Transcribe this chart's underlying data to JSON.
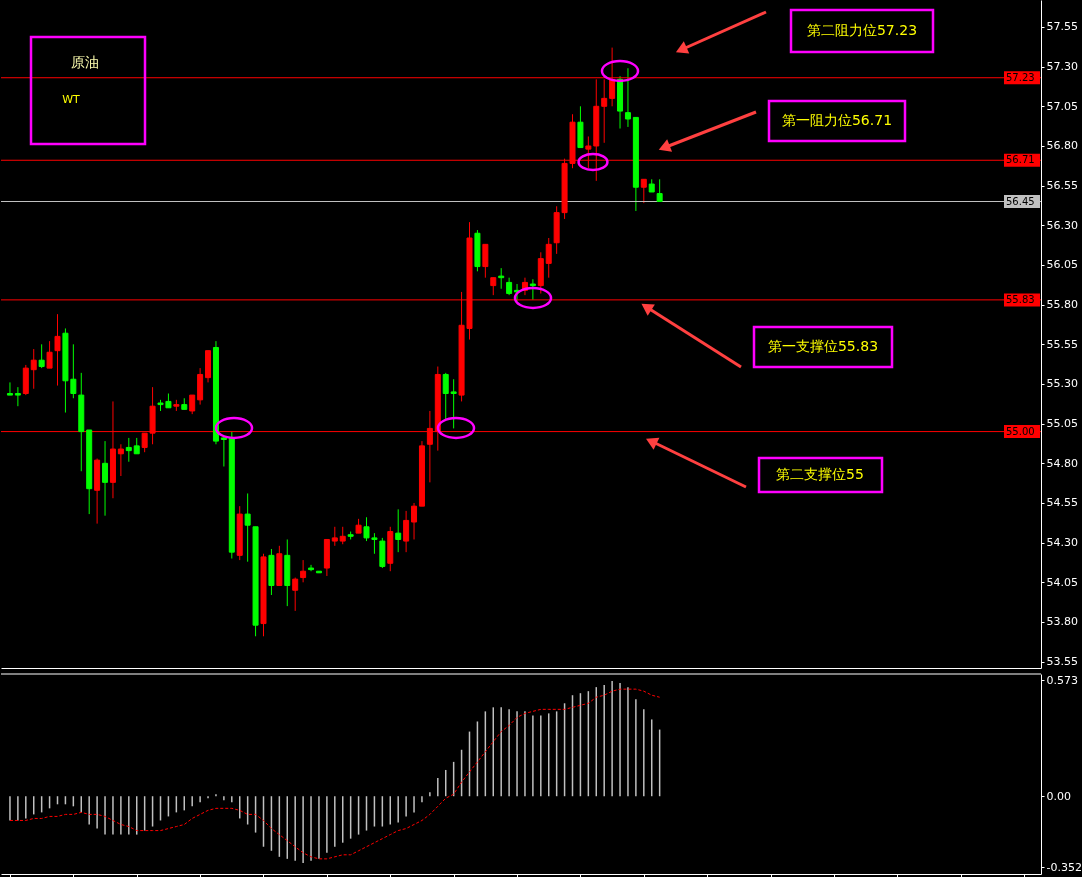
{
  "chart_data": [
    {
      "type": "candlestick",
      "categories": [
        null,
        null,
        null,
        null,
        null,
        null,
        null,
        null,
        null,
        null,
        null,
        null,
        null,
        null,
        null,
        null,
        null,
        null,
        null,
        null,
        null,
        null,
        null,
        null,
        null,
        null,
        null,
        null,
        null,
        null,
        null,
        null,
        null,
        null,
        null,
        null,
        null,
        null,
        null,
        null,
        null,
        null,
        null,
        null,
        null,
        null,
        null,
        null,
        null,
        null,
        null,
        null,
        null,
        null,
        null,
        null,
        null,
        null,
        null,
        null,
        null,
        null,
        null,
        null,
        null,
        null,
        null,
        null,
        null,
        null,
        null,
        null,
        null,
        null,
        null,
        null,
        null,
        null,
        null,
        null,
        null,
        null,
        null,
        null,
        null,
        null,
        null,
        null,
        null,
        null,
        null,
        null,
        null,
        null,
        null,
        null,
        null,
        null,
        null,
        null,
        null,
        null,
        null,
        null,
        null,
        null,
        null,
        null,
        null,
        null,
        null,
        null,
        null,
        null,
        null,
        null,
        null,
        null,
        null,
        null,
        null,
        null,
        null,
        null,
        null,
        null,
        null,
        null,
        null,
        null
      ],
      "ohlc": [
        [
          55.24,
          55.31,
          55.23,
          55.23
        ],
        [
          55.24,
          55.28,
          55.16,
          55.23
        ],
        [
          55.24,
          55.42,
          55.23,
          55.4
        ],
        [
          55.39,
          55.52,
          55.27,
          55.45
        ],
        [
          55.45,
          55.55,
          55.4,
          55.41
        ],
        [
          55.4,
          55.57,
          55.4,
          55.5
        ],
        [
          55.51,
          55.74,
          55.29,
          55.6
        ],
        [
          55.62,
          55.65,
          55.12,
          55.32
        ],
        [
          55.33,
          55.55,
          55.21,
          55.24
        ],
        [
          55.23,
          55.37,
          54.75,
          55.0
        ],
        [
          55.01,
          55.01,
          54.48,
          54.64
        ],
        [
          54.63,
          54.83,
          54.42,
          54.82
        ],
        [
          54.8,
          54.94,
          54.47,
          54.68
        ],
        [
          54.68,
          55.19,
          54.58,
          54.89
        ],
        [
          54.86,
          54.92,
          54.72,
          54.89
        ],
        [
          54.9,
          54.96,
          54.81,
          54.88
        ],
        [
          54.91,
          54.96,
          54.86,
          54.86
        ],
        [
          54.9,
          54.99,
          54.87,
          54.99
        ],
        [
          54.99,
          55.28,
          54.92,
          55.16
        ],
        [
          55.18,
          55.2,
          55.13,
          55.17
        ],
        [
          55.19,
          55.24,
          55.15,
          55.15
        ],
        [
          55.16,
          55.2,
          55.13,
          55.17
        ],
        [
          55.17,
          55.21,
          55.14,
          55.14
        ],
        [
          55.13,
          55.23,
          55.11,
          55.23
        ],
        [
          55.2,
          55.4,
          55.17,
          55.36
        ],
        [
          55.34,
          55.51,
          55.31,
          55.51
        ],
        [
          55.53,
          55.57,
          54.92,
          54.94
        ],
        [
          54.96,
          54.97,
          54.78,
          54.95
        ],
        [
          54.96,
          55.0,
          54.2,
          54.24
        ],
        [
          54.22,
          54.53,
          54.19,
          54.48
        ],
        [
          54.48,
          54.61,
          54.18,
          54.41
        ],
        [
          54.4,
          54.4,
          53.71,
          53.78
        ],
        [
          53.79,
          54.23,
          53.71,
          54.21
        ],
        [
          54.22,
          54.26,
          53.97,
          54.03
        ],
        [
          54.03,
          54.28,
          54.03,
          54.23
        ],
        [
          54.22,
          54.32,
          53.9,
          54.03
        ],
        [
          54.0,
          54.08,
          53.87,
          54.07
        ],
        [
          54.08,
          54.19,
          54.05,
          54.12
        ],
        [
          54.14,
          54.16,
          54.12,
          54.13
        ],
        [
          54.12,
          54.12,
          54.11,
          54.11
        ],
        [
          54.14,
          54.32,
          54.09,
          54.32
        ],
        [
          54.31,
          54.4,
          54.28,
          54.33
        ],
        [
          54.31,
          54.4,
          54.29,
          54.34
        ],
        [
          54.35,
          54.37,
          54.32,
          54.34
        ],
        [
          54.36,
          54.45,
          54.36,
          54.41
        ],
        [
          54.4,
          54.46,
          54.31,
          54.33
        ],
        [
          54.33,
          54.36,
          54.23,
          54.32
        ],
        [
          54.31,
          54.33,
          54.14,
          54.15
        ],
        [
          54.17,
          54.4,
          54.12,
          54.37
        ],
        [
          54.36,
          54.51,
          54.24,
          54.32
        ],
        [
          54.31,
          54.5,
          54.24,
          54.44
        ],
        [
          54.43,
          54.55,
          54.32,
          54.53
        ],
        [
          54.53,
          54.94,
          54.53,
          54.91
        ],
        [
          54.92,
          55.13,
          54.68,
          55.02
        ],
        [
          55.0,
          55.41,
          54.88,
          55.36
        ],
        [
          55.36,
          55.37,
          55.07,
          55.24
        ],
        [
          55.25,
          55.33,
          55.02,
          55.24
        ],
        [
          55.23,
          55.88,
          55.19,
          55.67
        ],
        [
          55.65,
          56.32,
          55.58,
          56.22
        ],
        [
          56.25,
          56.27,
          56.01,
          56.04
        ],
        [
          56.04,
          56.18,
          55.97,
          56.18
        ],
        [
          55.92,
          55.97,
          55.86,
          55.97
        ],
        [
          55.98,
          56.03,
          55.9,
          55.97
        ],
        [
          55.94,
          55.97,
          55.86,
          55.87
        ],
        [
          55.89,
          55.93,
          55.82,
          55.88
        ],
        [
          55.89,
          55.97,
          55.86,
          55.94
        ],
        [
          55.93,
          55.96,
          55.83,
          55.92
        ],
        [
          55.92,
          56.13,
          55.87,
          56.09
        ],
        [
          56.06,
          56.22,
          55.97,
          56.18
        ],
        [
          56.19,
          56.42,
          56.12,
          56.38
        ],
        [
          56.38,
          56.72,
          56.34,
          56.69
        ],
        [
          56.69,
          57.0,
          56.66,
          56.95
        ],
        [
          56.95,
          57.05,
          56.79,
          56.79
        ],
        [
          56.78,
          56.86,
          56.66,
          56.8
        ],
        [
          56.8,
          57.22,
          56.58,
          57.05
        ],
        [
          57.05,
          57.22,
          56.82,
          57.1
        ],
        [
          57.1,
          57.42,
          57.05,
          57.22
        ],
        [
          57.22,
          57.24,
          56.91,
          57.02
        ],
        [
          57.01,
          57.29,
          56.92,
          56.97
        ],
        [
          56.98,
          56.98,
          56.39,
          56.54
        ],
        [
          56.54,
          56.59,
          56.44,
          56.59
        ],
        [
          56.56,
          56.59,
          56.51,
          56.51
        ],
        [
          56.5,
          56.59,
          56.45,
          56.45
        ],
        null,
        null,
        null,
        null,
        null,
        null,
        null,
        null,
        null,
        null,
        null,
        null,
        null,
        null,
        null,
        null,
        null,
        null,
        null,
        null,
        null,
        null,
        null,
        null,
        null,
        null,
        null,
        null,
        null,
        null,
        null,
        null,
        null,
        null,
        null,
        null,
        null,
        null,
        null,
        null,
        null,
        null,
        null,
        null,
        null,
        null,
        null
      ],
      "colors": [
        "#00ff00",
        "#00ff00",
        "#ff0000",
        "#ff0000",
        "#00ff00",
        "#ff0000",
        "#ff0000",
        "#00ff00",
        "#00ff00",
        "#00ff00",
        "#00ff00",
        "#ff0000",
        "#00ff00",
        "#ff0000",
        "#ff0000",
        "#00ff00",
        "#00ff00",
        "#ff0000",
        "#ff0000",
        "#00ff00",
        "#00ff00",
        "#ff0000",
        "#00ff00",
        "#ff0000",
        "#ff0000",
        "#ff0000",
        "#00ff00",
        "#00ff00",
        "#00ff00",
        "#ff0000",
        "#00ff00",
        "#00ff00",
        "#ff0000",
        "#00ff00",
        "#ff0000",
        "#00ff00",
        "#ff0000",
        "#ff0000",
        "#00ff00",
        "#00ff00",
        "#ff0000",
        "#ff0000",
        "#ff0000",
        "#00ff00",
        "#ff0000",
        "#00ff00",
        "#00ff00",
        "#00ff00",
        "#ff0000",
        "#00ff00",
        "#ff0000",
        "#ff0000",
        "#ff0000",
        "#ff0000",
        "#ff0000",
        "#00ff00",
        "#00ff00",
        "#ff0000",
        "#ff0000",
        "#00ff00",
        "#ff0000",
        "#ff0000",
        "#00ff00",
        "#00ff00",
        "#00ff00",
        "#ff0000",
        "#00ff00",
        "#ff0000",
        "#ff0000",
        "#ff0000",
        "#ff0000",
        "#ff0000",
        "#00ff00",
        "#ff0000",
        "#ff0000",
        "#ff0000",
        "#ff0000",
        "#00ff00",
        "#00ff00",
        "#00ff00",
        "#ff0000",
        "#00ff00",
        "#00ff00",
        null,
        null,
        null,
        null,
        null,
        null,
        null,
        null,
        null,
        null,
        null,
        null,
        null,
        null,
        null,
        null,
        null,
        null,
        null,
        null,
        null,
        null,
        null,
        null,
        null,
        null,
        null,
        null,
        null,
        null,
        null,
        null,
        null,
        null,
        null,
        null,
        null,
        null,
        null,
        null,
        null,
        null,
        null,
        null,
        null,
        null,
        null
      ],
      "ylim": [
        53.51,
        57.72
      ],
      "yticks": [
        53.55,
        {
          "value": 53.8,
          "label": "53.80"
        },
        54.05,
        {
          "value": 54.3,
          "label": "54.30"
        },
        54.55,
        {
          "value": 54.8,
          "label": "54.80"
        },
        55.05,
        {
          "value": 55.3,
          "label": "55.30"
        },
        55.55,
        {
          "value": 55.8,
          "label": "55.80"
        },
        56.05,
        {
          "value": 56.3,
          "label": "56.30"
        },
        56.55,
        {
          "value": 56.8,
          "label": "56.80"
        },
        57.05,
        {
          "value": 57.3,
          "label": "57.30"
        },
        57.55
      ],
      "ref_lines": [
        {
          "axis": "y",
          "value": 57.23,
          "label": "57.23",
          "color": "#ff0000"
        },
        {
          "axis": "y",
          "value": 56.71,
          "label": "56.71",
          "color": "#ff0000"
        },
        {
          "axis": "y",
          "value": 56.45,
          "label": "56.45",
          "color": "#c0c0c0"
        },
        {
          "axis": "y",
          "value": 55.83,
          "label": "55.83",
          "color": "#ff0000"
        },
        {
          "axis": "y",
          "value": 55,
          "label": "55.00",
          "color": "#ff0000"
        }
      ],
      "annotations": [
        "原油",
        "WT",
        "第二阻力位57.23",
        "第一阻力位56.71",
        "第一支撑位55.83",
        "第二支撑位55"
      ],
      "tick_labels": "y",
      "grid": false
    },
    {
      "type": "bar",
      "categories": [
        null,
        null,
        null,
        null,
        null,
        null,
        null,
        null,
        null,
        null,
        null,
        null,
        null,
        null,
        null,
        null,
        null,
        null,
        null,
        null,
        null,
        null,
        null,
        null,
        null,
        null,
        null,
        null,
        null,
        null,
        null,
        null,
        null,
        null,
        null,
        null,
        null,
        null,
        null,
        null,
        null,
        null,
        null,
        null,
        null,
        null,
        null,
        null,
        null,
        null,
        null,
        null,
        null,
        null,
        null,
        null,
        null,
        null,
        null,
        null,
        null,
        null,
        null,
        null,
        null,
        null,
        null,
        null,
        null,
        null,
        null,
        null,
        null,
        null,
        null,
        null,
        null,
        null,
        null,
        null,
        null,
        null,
        null,
        null,
        null,
        null,
        null,
        null,
        null,
        null,
        null,
        null,
        null,
        null,
        null,
        null,
        null,
        null,
        null,
        null,
        null,
        null,
        null,
        null,
        null,
        null,
        null,
        null,
        null,
        null,
        null,
        null,
        null,
        null,
        null,
        null,
        null,
        null,
        null,
        null,
        null,
        null,
        null,
        null,
        null,
        null,
        null,
        null,
        null,
        null
      ],
      "series": [
        {
          "type": "bar",
          "color": "#c0c0c0",
          "values": [
            -0.12,
            -0.12,
            -0.11,
            -0.09,
            -0.08,
            -0.06,
            -0.04,
            -0.04,
            -0.05,
            -0.08,
            -0.14,
            -0.16,
            -0.19,
            -0.19,
            -0.19,
            -0.19,
            -0.19,
            -0.17,
            -0.15,
            -0.12,
            -0.1,
            -0.08,
            -0.07,
            -0.05,
            -0.03,
            -0.01,
            0.01,
            -0.02,
            -0.03,
            -0.11,
            -0.14,
            -0.18,
            -0.25,
            -0.27,
            -0.3,
            -0.31,
            -0.32,
            -0.33,
            -0.32,
            -0.31,
            -0.28,
            -0.25,
            -0.23,
            -0.21,
            -0.19,
            -0.17,
            -0.15,
            -0.15,
            -0.14,
            -0.13,
            -0.1,
            -0.08,
            -0.03,
            0.02,
            0.09,
            0.13,
            0.17,
            0.23,
            0.32,
            0.37,
            0.42,
            0.44,
            0.44,
            0.43,
            0.42,
            0.42,
            0.4,
            0.4,
            0.41,
            0.42,
            0.46,
            0.5,
            0.51,
            0.52,
            0.54,
            0.55,
            0.57,
            0.56,
            0.54,
            0.48,
            0.43,
            0.38,
            0.33,
            null,
            null,
            null,
            null,
            null,
            null,
            null,
            null,
            null,
            null,
            null,
            null,
            null,
            null,
            null,
            null,
            null,
            null,
            null,
            null,
            null,
            null,
            null,
            null,
            null,
            null,
            null,
            null,
            null,
            null,
            null,
            null,
            null,
            null,
            null,
            null,
            null,
            null,
            null,
            null,
            null,
            null,
            null,
            null,
            null,
            null,
            null
          ]
        },
        {
          "type": "line",
          "color": "#ff0000",
          "line_style": "dashed",
          "values": [
            -0.12,
            -0.12,
            -0.12,
            -0.11,
            -0.11,
            -0.1,
            -0.1,
            -0.09,
            -0.09,
            -0.08,
            -0.09,
            -0.09,
            -0.1,
            -0.12,
            -0.14,
            -0.15,
            -0.17,
            -0.17,
            -0.17,
            -0.17,
            -0.16,
            -0.15,
            -0.14,
            -0.11,
            -0.09,
            -0.07,
            -0.06,
            -0.06,
            -0.06,
            -0.07,
            -0.09,
            -0.09,
            -0.12,
            -0.16,
            -0.19,
            -0.22,
            -0.25,
            -0.28,
            -0.3,
            -0.31,
            -0.31,
            -0.3,
            -0.29,
            -0.29,
            -0.27,
            -0.25,
            -0.23,
            -0.21,
            -0.19,
            -0.17,
            -0.16,
            -0.14,
            -0.12,
            -0.09,
            -0.05,
            -0.01,
            0.01,
            0.07,
            0.12,
            0.17,
            0.22,
            0.27,
            0.32,
            0.35,
            0.39,
            0.41,
            0.42,
            0.43,
            0.43,
            0.43,
            0.43,
            0.44,
            0.45,
            0.46,
            0.49,
            0.5,
            0.52,
            0.53,
            0.53,
            0.53,
            0.52,
            0.5,
            0.49,
            null,
            null,
            null,
            null,
            null,
            null,
            null,
            null,
            null,
            null,
            null,
            null,
            null,
            null,
            null,
            null,
            null,
            null,
            null,
            null,
            null,
            null,
            null,
            null,
            null,
            null,
            null,
            null,
            null,
            null,
            null,
            null,
            null,
            null,
            null,
            null,
            null,
            null,
            null,
            null,
            null,
            null,
            null,
            null,
            null,
            null,
            null
          ]
        }
      ],
      "ylim": [
        -0.385,
        0.605
      ],
      "yticks": [
        0.573,
        {
          "value": 0,
          "label": "0.00"
        },
        -0.352
      ],
      "tick_labels": "y",
      "grid": false
    }
  ]
}
